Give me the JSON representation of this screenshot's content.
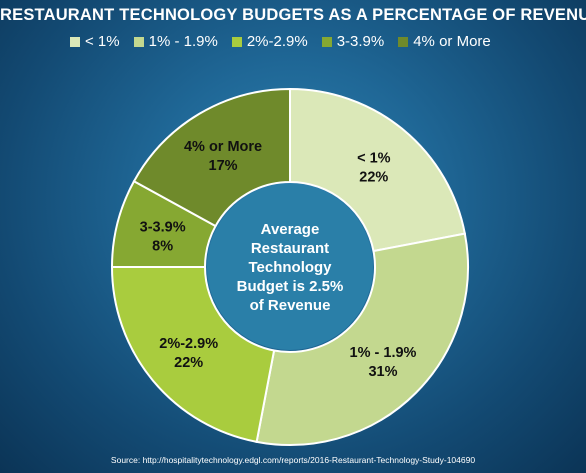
{
  "title": "RESTAURANT TECHNOLOGY BUDGETS AS A PERCENTAGE OF REVENUE",
  "source": "Source: http://hospitalitytechnology.edgl.com/reports/2016-Restaurant-Technology-Study-104690",
  "center_lines": [
    "Average",
    "Restaurant",
    "Technology",
    "Budget is 2.5%",
    "of Revenue"
  ],
  "colors": {
    "lt1": "#dbe8b8",
    "1to1_9": "#c3d88f",
    "2to2_9": "#a9cc3e",
    "3to3_9": "#86a832",
    "4plus": "#6f8a2b",
    "center": "#2a7fa8"
  },
  "chart_data": {
    "type": "pie",
    "donut": true,
    "title": "RESTAURANT TECHNOLOGY BUDGETS AS A PERCENTAGE OF REVENUE",
    "legend_position": "top",
    "categories": [
      "< 1%",
      "1% - 1.9%",
      "2%-2.9%",
      "3-3.9%",
      "4% or More"
    ],
    "values": [
      22,
      31,
      22,
      8,
      17
    ],
    "labels": [
      {
        "name": "< 1%",
        "value": "22%"
      },
      {
        "name": "1% - 1.9%",
        "value": "31%"
      },
      {
        "name": "2%-2.9%",
        "value": "22%"
      },
      {
        "name": "3-3.9%",
        "value": "8%"
      },
      {
        "name": "4% or More",
        "value": "17%"
      }
    ],
    "legend": [
      "< 1%",
      "1% - 1.9%",
      "2%-2.9%",
      "3-3.9%",
      "4% or More"
    ]
  }
}
